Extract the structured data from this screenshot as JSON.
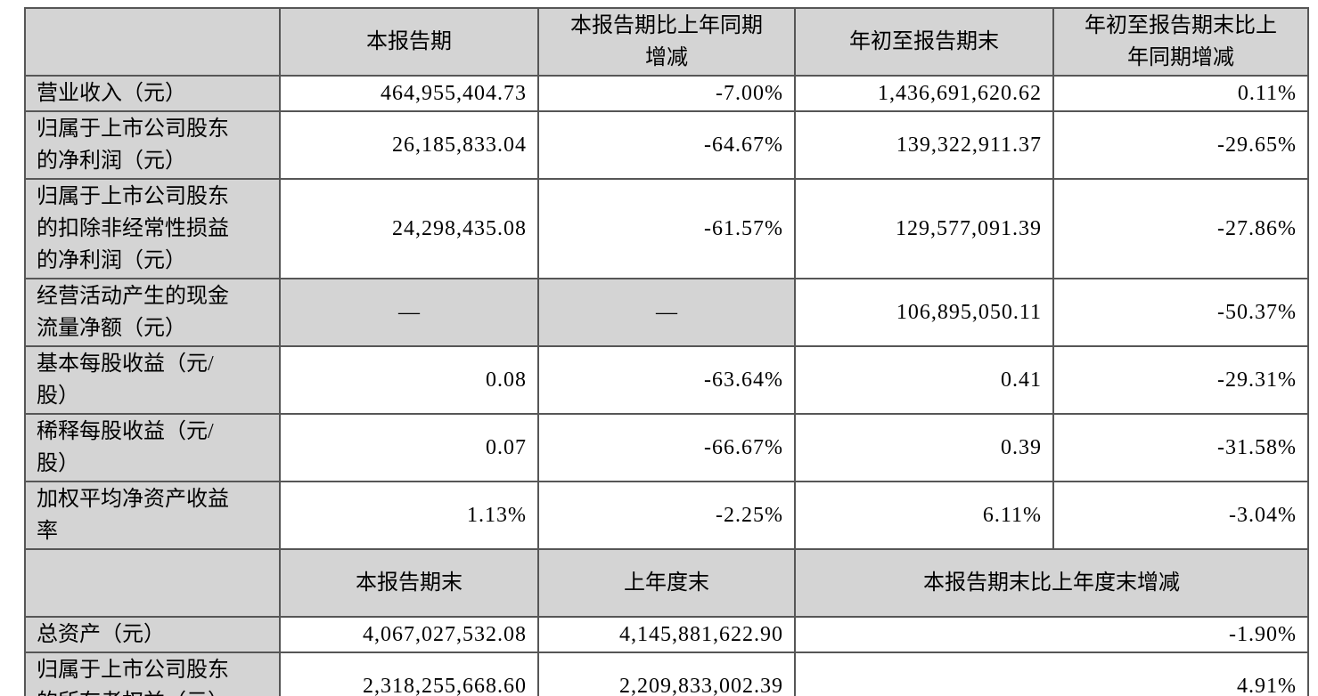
{
  "colors": {
    "shaded_cell_bg": "#d4d4d4",
    "border": "#565656",
    "text": "#000000",
    "page_bg": "#ffffff"
  },
  "table": {
    "header_row_1": {
      "corner": "",
      "cols": [
        "本报告期",
        "本报告期比上年同期\n增减",
        "年初至报告期末",
        "年初至报告期末比上\n年同期增减"
      ]
    },
    "rows_period": [
      {
        "label": "营业收入（元）",
        "current": "464,955,404.73",
        "current_yoy": "-7.00%",
        "ytd": "1,436,691,620.62",
        "ytd_yoy": "0.11%"
      },
      {
        "label": "归属于上市公司股东\n的净利润（元）",
        "current": "26,185,833.04",
        "current_yoy": "-64.67%",
        "ytd": "139,322,911.37",
        "ytd_yoy": "-29.65%"
      },
      {
        "label": "归属于上市公司股东\n的扣除非经常性损益\n的净利润（元）",
        "current": "24,298,435.08",
        "current_yoy": "-61.57%",
        "ytd": "129,577,091.39",
        "ytd_yoy": "-27.86%"
      },
      {
        "label": "经营活动产生的现金\n流量净额（元）",
        "current": "—",
        "current_yoy": "—",
        "ytd": "106,895,050.11",
        "ytd_yoy": "-50.37%",
        "dash_cells": true
      },
      {
        "label": "基本每股收益（元/\n股）",
        "current": "0.08",
        "current_yoy": "-63.64%",
        "ytd": "0.41",
        "ytd_yoy": "-29.31%"
      },
      {
        "label": "稀释每股收益（元/\n股）",
        "current": "0.07",
        "current_yoy": "-66.67%",
        "ytd": "0.39",
        "ytd_yoy": "-31.58%"
      },
      {
        "label": "加权平均净资产收益\n率",
        "current": "1.13%",
        "current_yoy": "-2.25%",
        "ytd": "6.11%",
        "ytd_yoy": "-3.04%"
      }
    ],
    "header_row_2": {
      "corner": "",
      "cols": [
        "本报告期末",
        "上年度末",
        "本报告期末比上年度末增减"
      ]
    },
    "rows_period_end": [
      {
        "label": "总资产（元）",
        "end": "4,067,027,532.08",
        "prev_year_end": "4,145,881,622.90",
        "change": "-1.90%"
      },
      {
        "label": "归属于上市公司股东\n的所有者权益（元）",
        "end": "2,318,255,668.60",
        "prev_year_end": "2,209,833,002.39",
        "change": "4.91%"
      }
    ]
  }
}
